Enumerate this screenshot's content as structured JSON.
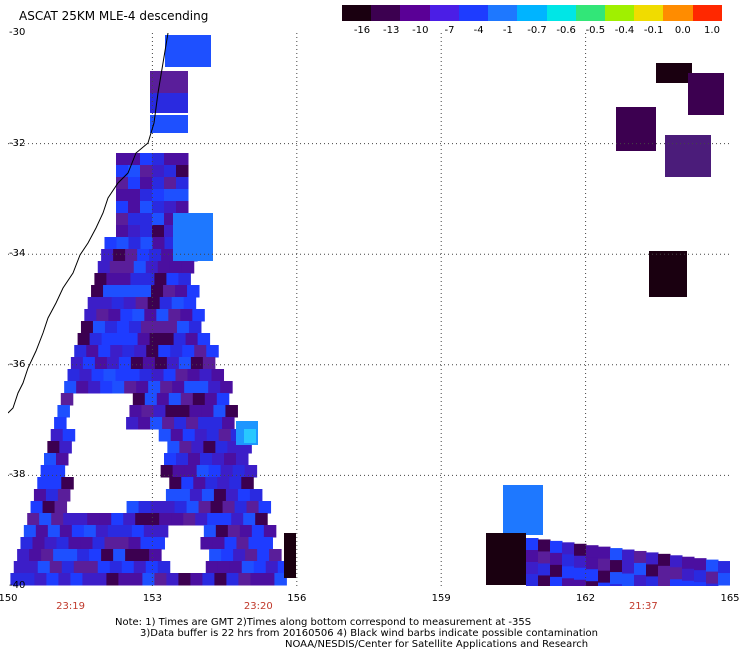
{
  "title": "ASCAT 25KM MLE-4 descending",
  "colorbar": {
    "labels": [
      "-16",
      "-13",
      "-10",
      "-7",
      "-4",
      "-1",
      "-0.7",
      "-0.6",
      "-0.5",
      "-0.4",
      "-0.1",
      "0.0",
      "1.0"
    ],
    "colors": [
      "#1a0010",
      "#3c0050",
      "#5a0096",
      "#4b1ee6",
      "#1e3cff",
      "#1e78ff",
      "#00b4ff",
      "#00e6e6",
      "#32e678",
      "#a0f000",
      "#f0dc00",
      "#ff8c00",
      "#ff2800"
    ]
  },
  "map": {
    "lon_labels": [
      "150",
      "153",
      "156",
      "159",
      "162",
      "165"
    ],
    "lat_labels": [
      "-30",
      "-32",
      "-34",
      "-36",
      "-38",
      "-40"
    ],
    "times": [
      {
        "label": "23:19",
        "lon": 151.3
      },
      {
        "label": "23:20",
        "lon": 155.2
      },
      {
        "label": "21:37",
        "lon": 163.2
      }
    ]
  },
  "notes": [
    "Note: 1) Times are GMT 2)Times along bottom correspond to measurement at -35S",
    "3)Data buffer is 22 hrs from 20160506 4) Black wind barbs indicate possible contamination",
    "NOAA/NESDIS/Center for Satellite Applications and Research"
  ]
}
